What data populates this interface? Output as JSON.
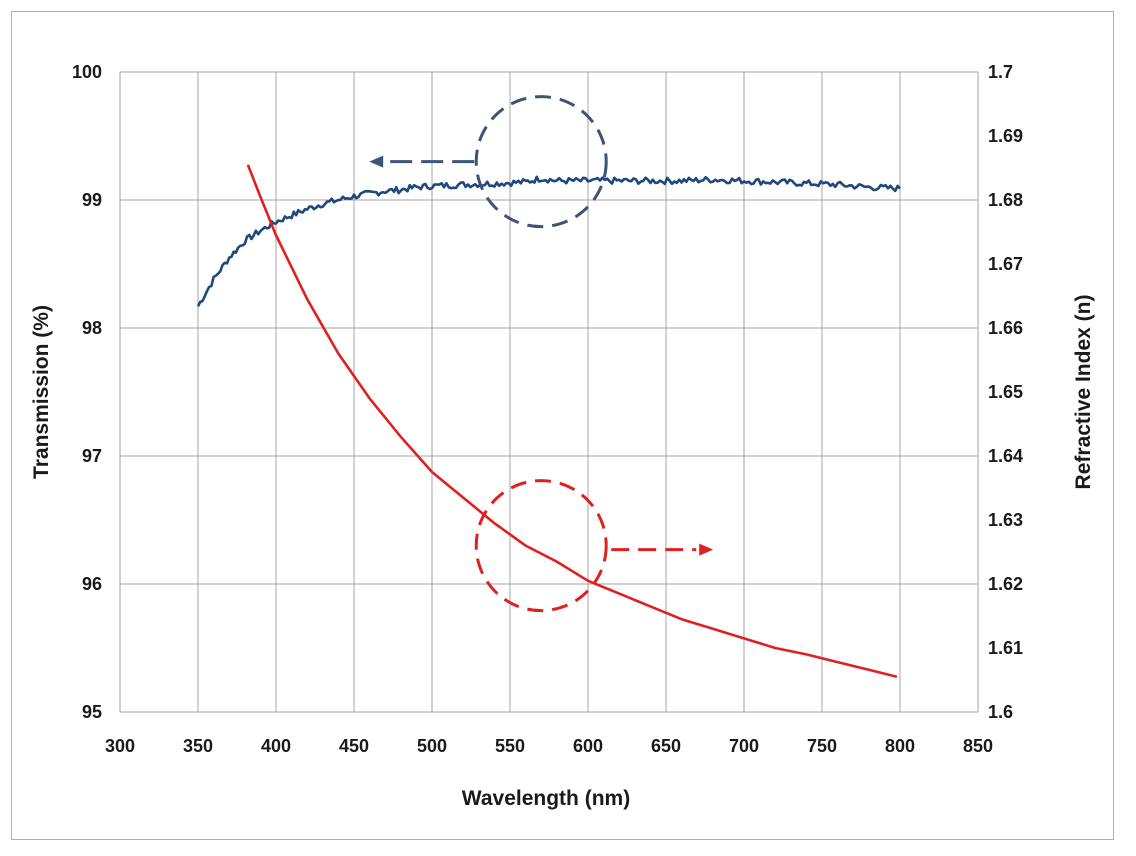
{
  "chart_data": {
    "type": "line",
    "xlabel": "Wavelength (nm)",
    "ylabel": "Transmission (%)",
    "y2label": "Refractive Index (n)",
    "xlim": [
      300,
      850
    ],
    "ylim": [
      95,
      100
    ],
    "y2lim": [
      1.6,
      1.7
    ],
    "xticks": [
      "300",
      "350",
      "400",
      "450",
      "500",
      "550",
      "600",
      "650",
      "700",
      "750",
      "800",
      "850"
    ],
    "yticks": [
      "95",
      "96",
      "97",
      "98",
      "99",
      "100"
    ],
    "y2ticks": [
      "1.6",
      "1.61",
      "1.62",
      "1.63",
      "1.64",
      "1.65",
      "1.66",
      "1.67",
      "1.68",
      "1.69",
      "1.7"
    ],
    "grid": true,
    "series": [
      {
        "axis": "left",
        "color": "#1f497d",
        "x": [
          350,
          360,
          370,
          380,
          390,
          400,
          410,
          420,
          430,
          440,
          450,
          460,
          470,
          480,
          490,
          500,
          520,
          540,
          560,
          570,
          580,
          600,
          620,
          640,
          660,
          680,
          700,
          720,
          740,
          760,
          780,
          800
        ],
        "y": [
          98.17,
          98.38,
          98.55,
          98.68,
          98.76,
          98.83,
          98.88,
          98.93,
          98.97,
          99.0,
          99.03,
          99.05,
          99.07,
          99.08,
          99.1,
          99.11,
          99.12,
          99.13,
          99.14,
          99.17,
          99.15,
          99.15,
          99.15,
          99.15,
          99.15,
          99.16,
          99.15,
          99.14,
          99.13,
          99.12,
          99.1,
          99.09
        ]
      },
      {
        "axis": "right",
        "color": "#e02020",
        "x": [
          382,
          390,
          400,
          420,
          440,
          460,
          480,
          500,
          520,
          540,
          560,
          580,
          600,
          620,
          640,
          660,
          680,
          700,
          720,
          740,
          760,
          780,
          798
        ],
        "y": [
          1.6855,
          1.6805,
          1.6745,
          1.6645,
          1.656,
          1.649,
          1.643,
          1.6375,
          1.6335,
          1.6295,
          1.626,
          1.6235,
          1.6205,
          1.6185,
          1.6165,
          1.6145,
          1.613,
          1.6115,
          1.61,
          1.609,
          1.6078,
          1.6066,
          1.6055
        ]
      }
    ],
    "annotations": [
      {
        "type": "circle-arrow",
        "series": 0,
        "center": [
          570,
          99.3
        ],
        "arrow": "left",
        "color": "#3d5475"
      },
      {
        "type": "circle-arrow",
        "series": 1,
        "center": [
          570,
          96.3
        ],
        "arrow": "right",
        "color": "#e02020"
      }
    ]
  }
}
